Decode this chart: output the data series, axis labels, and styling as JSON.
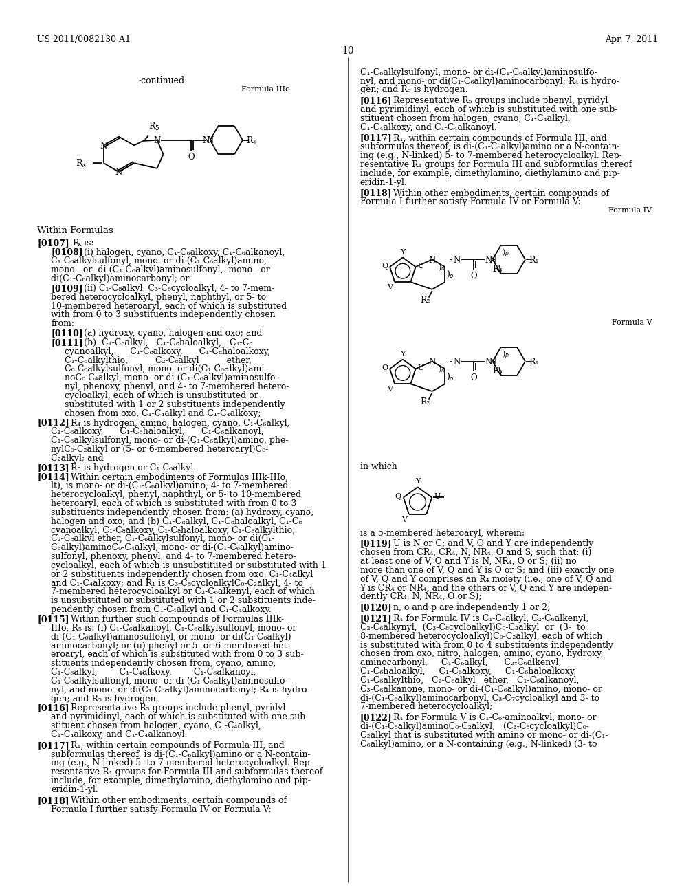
{
  "bg": "#ffffff",
  "header_left": "US 2011/0082130 A1",
  "header_right": "Apr. 7, 2011",
  "page_num": "10"
}
